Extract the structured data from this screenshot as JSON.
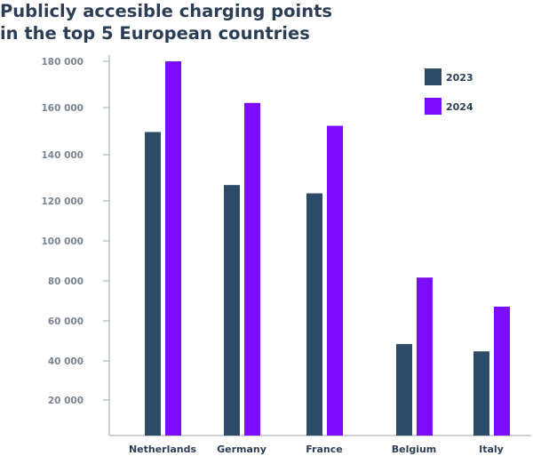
{
  "title_lines": [
    "Publicly accesible charging points",
    "in the top 5 European countries"
  ],
  "chart_data": {
    "type": "bar",
    "title": "Publicly accesible charging points in the top 5 European countries",
    "categories": [
      "Netherlands",
      "Germany",
      "France",
      "Belgium",
      "Italy"
    ],
    "series": [
      {
        "name": "2023",
        "color": "#2d4a66",
        "values": [
          146000,
          120500,
          116500,
          44000,
          40500
        ]
      },
      {
        "name": "2024",
        "color": "#7b0cff",
        "values": [
          180000,
          160000,
          149000,
          76000,
          62000
        ]
      }
    ],
    "yticks": [
      20000,
      40000,
      60000,
      80000,
      100000,
      120000,
      140000,
      160000,
      180000
    ],
    "ytick_labels": [
      "20 000",
      "40 000",
      "60 000",
      "80 000",
      "100 000",
      "120 000",
      "140 000",
      "160 000",
      "180 000"
    ],
    "xlabel": "",
    "ylabel": "",
    "ylim": [
      0,
      180000
    ],
    "grid": false,
    "legend_position": "top-right"
  }
}
